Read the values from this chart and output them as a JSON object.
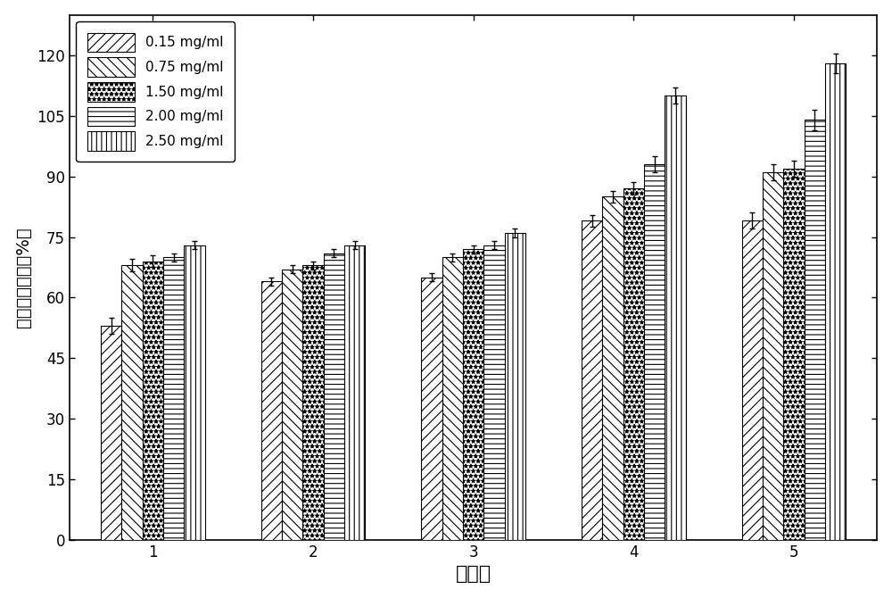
{
  "groups": [
    "1",
    "2",
    "3",
    "4",
    "5"
  ],
  "series_labels": [
    "0.15 mg/ml",
    "0.75 mg/ml",
    "1.50 mg/ml",
    "2.00 mg/ml",
    "2.50 mg/ml"
  ],
  "values": [
    [
      53,
      68,
      69,
      70,
      73
    ],
    [
      64,
      67,
      68,
      71,
      73
    ],
    [
      65,
      70,
      72,
      73,
      76
    ],
    [
      79,
      85,
      87,
      93,
      110
    ],
    [
      79,
      91,
      92,
      104,
      118
    ]
  ],
  "errors": [
    [
      2.0,
      1.5,
      1.5,
      1.0,
      1.0
    ],
    [
      1.0,
      1.0,
      1.0,
      1.0,
      1.0
    ],
    [
      1.0,
      1.0,
      1.0,
      1.0,
      1.0
    ],
    [
      1.5,
      1.5,
      1.5,
      2.0,
      2.0
    ],
    [
      2.0,
      2.0,
      2.0,
      2.5,
      2.5
    ]
  ],
  "ylim": [
    0,
    130
  ],
  "yticks": [
    0,
    15,
    30,
    45,
    60,
    75,
    90,
    105,
    120
  ],
  "ylabel": "双氧水清除率（%）",
  "xlabel": "取代度",
  "bar_width": 0.13,
  "background_color": "#ffffff",
  "axis_fontsize": 14,
  "tick_fontsize": 12,
  "legend_fontsize": 11
}
